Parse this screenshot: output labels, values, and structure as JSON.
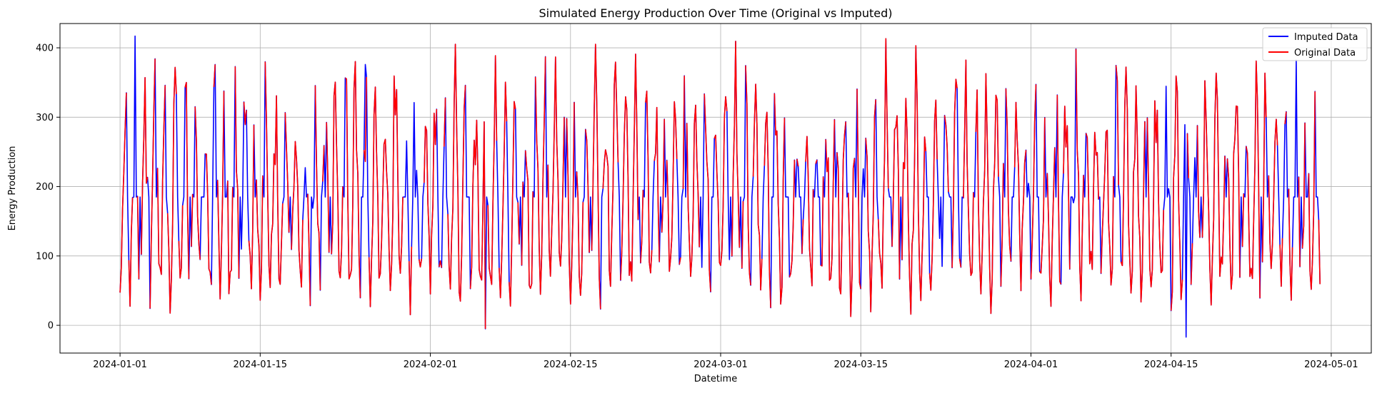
{
  "chart_data": {
    "type": "line",
    "title": "Simulated Energy Production Over Time (Original vs Imputed)",
    "xlabel": "Datetime",
    "ylabel": "Energy Production",
    "x_range": [
      "2023-12-26",
      "2024-05-05"
    ],
    "ylim": [
      -40,
      435
    ],
    "x_ticks": [
      "2024-01-01",
      "2024-01-15",
      "2024-02-01",
      "2024-02-15",
      "2024-03-01",
      "2024-03-15",
      "2024-04-01",
      "2024-04-15",
      "2024-05-01"
    ],
    "y_ticks": [
      0,
      100,
      200,
      300,
      400
    ],
    "grid": true,
    "legend": {
      "position": "top-right"
    },
    "data_start": "2024-01-01",
    "data_end": "2024-04-29",
    "imputed_fill_value": 185,
    "daily_pattern": {
      "night_min_range": [
        15,
        95
      ],
      "day_peak_range": [
        240,
        400
      ],
      "gap_filled_level": 185
    },
    "notable_points": [
      {
        "x": "2024-01-02",
        "y": 417,
        "series": "Original Data"
      },
      {
        "x": "2024-02-06",
        "y": -5,
        "series": "Original Data"
      },
      {
        "x": "2024-03-20",
        "y": 403,
        "series": "Original Data"
      },
      {
        "x": "2024-04-16",
        "y": -17,
        "series": "Imputed Data"
      },
      {
        "x": "2024-01-25",
        "y": 376,
        "series": "Imputed Data"
      }
    ],
    "series": [
      {
        "name": "Imputed Data",
        "color": "#0000ff",
        "role": "imputed"
      },
      {
        "name": "Original Data",
        "color": "#ff0000",
        "role": "original"
      }
    ]
  }
}
